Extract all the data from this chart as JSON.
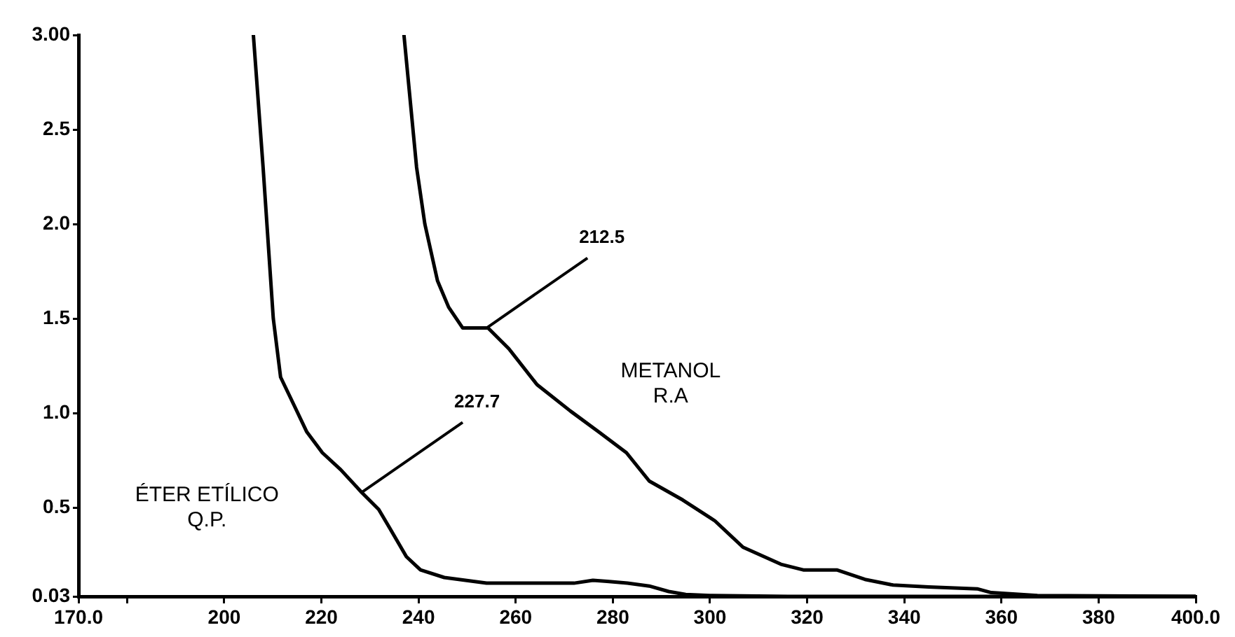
{
  "chart_data": {
    "type": "line",
    "xlim": [
      170,
      400
    ],
    "ylim": [
      0.03,
      3
    ],
    "xticks": [
      {
        "value": 170,
        "label": "170.0"
      },
      {
        "value": 180,
        "label": null
      },
      200,
      220,
      240,
      260,
      280,
      300,
      320,
      340,
      360,
      380,
      {
        "value": 400,
        "label": "400.0"
      }
    ],
    "yticks": [
      {
        "value": 0.03,
        "label": "0.03"
      },
      {
        "value": 0.5,
        "label": "0.5"
      },
      {
        "value": 1,
        "label": "1.0"
      },
      {
        "value": 1.5,
        "label": "1.5"
      },
      {
        "value": 2,
        "label": "2.0"
      },
      {
        "value": 2.5,
        "label": "2.5"
      },
      {
        "value": 3,
        "label": "3.00"
      }
    ],
    "grid": false,
    "legend": false,
    "marker": "none",
    "line_style": "solid",
    "series": [
      {
        "name": "ÉTER ETÍLICO Q.P.",
        "color": "#000000",
        "x": [
          206,
          208,
          210.1,
          211.6,
          214.4,
          217,
          220.2,
          224,
          228.3,
          231.8,
          234.1,
          237.5,
          240.4,
          245.3,
          254,
          265,
          272,
          275.9,
          278.8,
          283,
          287.5,
          291.5,
          295,
          300,
          316,
          350,
          400
        ],
        "values": [
          3,
          2.3,
          1.5,
          1.19,
          1.04,
          0.9,
          0.79,
          0.7,
          0.58,
          0.49,
          0.39,
          0.24,
          0.17,
          0.13,
          0.1,
          0.1,
          0.1,
          0.115,
          0.11,
          0.1,
          0.085,
          0.056,
          0.04,
          0.035,
          0.03,
          0.03,
          0.03
        ]
      },
      {
        "name": "METANOL R.A",
        "color": "#000000",
        "x": [
          237,
          239.6,
          241.3,
          243.9,
          246.2,
          249.1,
          254.3,
          258.6,
          264.4,
          271.3,
          277.1,
          282.8,
          287.5,
          294.4,
          301,
          306.8,
          314.6,
          319.2,
          326.1,
          331.9,
          337.7,
          345,
          355,
          357.9,
          367.4,
          400
        ],
        "values": [
          3,
          2.3,
          2,
          1.7,
          1.56,
          1.45,
          1.45,
          1.34,
          1.15,
          1.01,
          0.9,
          0.79,
          0.64,
          0.54,
          0.43,
          0.29,
          0.2,
          0.17,
          0.17,
          0.12,
          0.09,
          0.08,
          0.07,
          0.05,
          0.035,
          0.03
        ]
      }
    ],
    "annotations": [
      {
        "text": "212.5",
        "x": 254,
        "y": 1.45
      },
      {
        "text": "227.7",
        "x": 228.3,
        "y": 0.58
      }
    ]
  }
}
